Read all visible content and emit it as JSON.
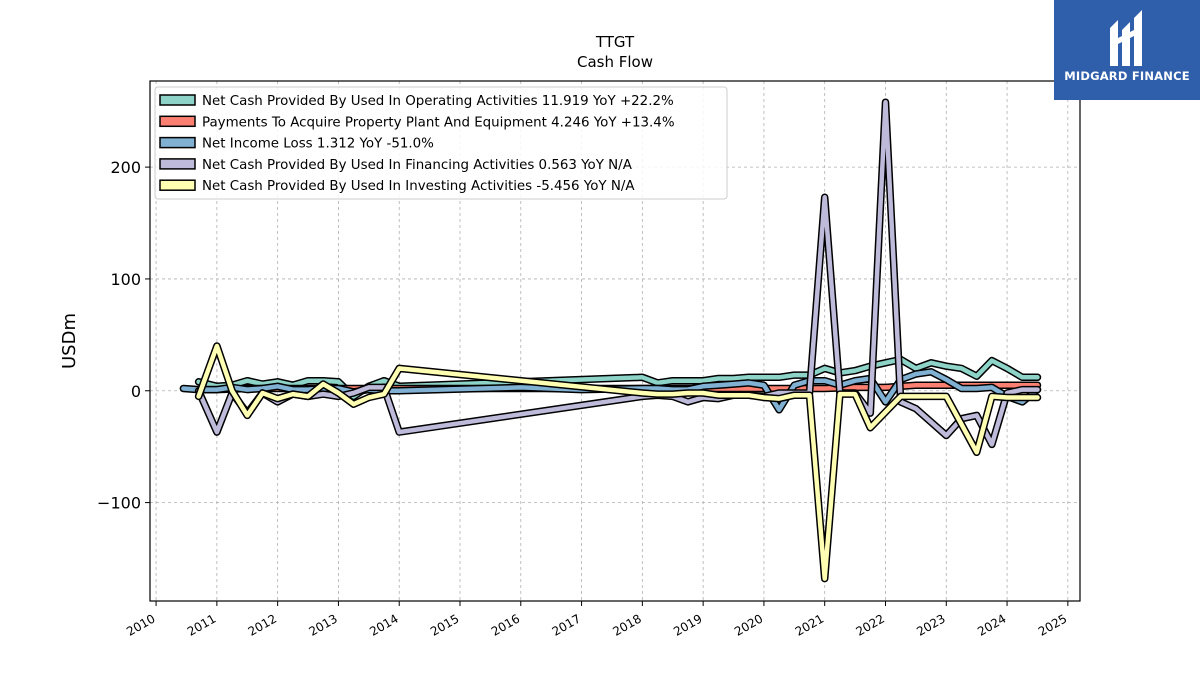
{
  "chart_data": {
    "type": "line",
    "title": "TTGT",
    "subtitle": "Cash Flow",
    "ylabel": "USDm",
    "xlabel": "",
    "xlim": [
      2009.9,
      2025.2
    ],
    "ylim": [
      -188,
      277
    ],
    "yticks": [
      -100,
      0,
      100,
      200
    ],
    "ytick_labels": [
      "−100",
      "0",
      "100",
      "200"
    ],
    "xticks": [
      2010,
      2011,
      2012,
      2013,
      2014,
      2015,
      2016,
      2017,
      2018,
      2019,
      2020,
      2021,
      2022,
      2023,
      2024,
      2025
    ],
    "xtick_labels": [
      "2010",
      "2011",
      "2012",
      "2013",
      "2014",
      "2015",
      "2016",
      "2017",
      "2018",
      "2019",
      "2020",
      "2021",
      "2022",
      "2023",
      "2024",
      "2025"
    ],
    "grid": true,
    "legend_position": "top-left",
    "series": [
      {
        "name": "Net Cash Provided By Used In Operating Activities  11.919 YoY +22.2%",
        "color": "#8dd3c7",
        "points": [
          [
            2010.7,
            8
          ],
          [
            2011.0,
            4
          ],
          [
            2011.25,
            5
          ],
          [
            2011.5,
            9
          ],
          [
            2011.75,
            6
          ],
          [
            2012.0,
            8
          ],
          [
            2012.25,
            5
          ],
          [
            2012.5,
            9
          ],
          [
            2012.75,
            9
          ],
          [
            2013.0,
            8
          ],
          [
            2013.25,
            -5
          ],
          [
            2013.5,
            4
          ],
          [
            2013.75,
            9
          ],
          [
            2014.0,
            4
          ],
          [
            2018.0,
            12
          ],
          [
            2018.25,
            7
          ],
          [
            2018.5,
            9
          ],
          [
            2018.75,
            9
          ],
          [
            2019.0,
            9
          ],
          [
            2019.25,
            11
          ],
          [
            2019.5,
            11
          ],
          [
            2019.75,
            12
          ],
          [
            2020.0,
            12
          ],
          [
            2020.25,
            12
          ],
          [
            2020.5,
            14
          ],
          [
            2020.75,
            14
          ],
          [
            2021.0,
            20
          ],
          [
            2021.25,
            16
          ],
          [
            2021.5,
            18
          ],
          [
            2021.75,
            22
          ],
          [
            2022.0,
            25
          ],
          [
            2022.25,
            28
          ],
          [
            2022.5,
            20
          ],
          [
            2022.75,
            25
          ],
          [
            2023.0,
            22
          ],
          [
            2023.25,
            20
          ],
          [
            2023.5,
            13
          ],
          [
            2023.75,
            27
          ],
          [
            2024.0,
            20
          ],
          [
            2024.25,
            12
          ],
          [
            2024.5,
            12
          ]
        ]
      },
      {
        "name": "Payments To Acquire Property Plant And Equipment  4.246 YoY +13.4%",
        "color": "#fb8072",
        "points": [
          [
            2010.7,
            1
          ],
          [
            2011.0,
            1
          ],
          [
            2011.5,
            2
          ],
          [
            2012.0,
            2
          ],
          [
            2012.5,
            2
          ],
          [
            2013.0,
            2
          ],
          [
            2013.5,
            2
          ],
          [
            2014.0,
            2
          ],
          [
            2018.0,
            2
          ],
          [
            2019.0,
            2
          ],
          [
            2020.0,
            2
          ],
          [
            2021.0,
            2
          ],
          [
            2021.5,
            3
          ],
          [
            2022.0,
            3
          ],
          [
            2022.5,
            5
          ],
          [
            2023.0,
            5
          ],
          [
            2023.5,
            5
          ],
          [
            2024.0,
            5
          ],
          [
            2024.5,
            5
          ]
        ]
      },
      {
        "name": "Net Income Loss  1.312 YoY -51.0%",
        "color": "#80b1d3",
        "points": [
          [
            2010.45,
            2
          ],
          [
            2010.7,
            1
          ],
          [
            2011.0,
            1
          ],
          [
            2011.25,
            3
          ],
          [
            2011.5,
            1
          ],
          [
            2011.75,
            2
          ],
          [
            2012.0,
            4
          ],
          [
            2012.25,
            1
          ],
          [
            2012.5,
            1
          ],
          [
            2012.75,
            2
          ],
          [
            2013.0,
            2
          ],
          [
            2013.25,
            -1
          ],
          [
            2013.5,
            1
          ],
          [
            2013.75,
            0
          ],
          [
            2014.0,
            0
          ],
          [
            2016.0,
            3
          ],
          [
            2017.0,
            1
          ],
          [
            2018.0,
            2
          ],
          [
            2018.25,
            2
          ],
          [
            2018.5,
            1
          ],
          [
            2018.75,
            1
          ],
          [
            2019.0,
            4
          ],
          [
            2019.25,
            5
          ],
          [
            2019.5,
            6
          ],
          [
            2019.75,
            7
          ],
          [
            2020.0,
            5
          ],
          [
            2020.25,
            -17
          ],
          [
            2020.5,
            5
          ],
          [
            2020.75,
            9
          ],
          [
            2021.0,
            9
          ],
          [
            2021.25,
            5
          ],
          [
            2021.5,
            9
          ],
          [
            2021.75,
            11
          ],
          [
            2022.0,
            -10
          ],
          [
            2022.25,
            10
          ],
          [
            2022.5,
            15
          ],
          [
            2022.75,
            17
          ],
          [
            2023.0,
            10
          ],
          [
            2023.25,
            2
          ],
          [
            2023.5,
            2
          ],
          [
            2023.75,
            3
          ],
          [
            2024.0,
            -5
          ],
          [
            2024.25,
            -10
          ],
          [
            2024.5,
            1
          ]
        ]
      },
      {
        "name": "Net Cash Provided By Used In Financing Activities  0.563 YoY N/A",
        "color": "#bebada",
        "points": [
          [
            2010.7,
            0
          ],
          [
            2011.0,
            -37
          ],
          [
            2011.25,
            -2
          ],
          [
            2011.5,
            -20
          ],
          [
            2011.75,
            -2
          ],
          [
            2012.0,
            -10
          ],
          [
            2012.25,
            -3
          ],
          [
            2012.5,
            -5
          ],
          [
            2012.75,
            -3
          ],
          [
            2013.0,
            -5
          ],
          [
            2013.25,
            -2
          ],
          [
            2013.5,
            3
          ],
          [
            2013.75,
            3
          ],
          [
            2014.0,
            -37
          ],
          [
            2018.0,
            -5
          ],
          [
            2018.25,
            -4
          ],
          [
            2018.5,
            -5
          ],
          [
            2018.75,
            -10
          ],
          [
            2019.0,
            -6
          ],
          [
            2019.25,
            -7
          ],
          [
            2019.5,
            -4
          ],
          [
            2019.75,
            -4
          ],
          [
            2020.0,
            -5
          ],
          [
            2020.25,
            -2
          ],
          [
            2020.5,
            -2
          ],
          [
            2020.75,
            -2
          ],
          [
            2021.0,
            173
          ],
          [
            2021.25,
            -2
          ],
          [
            2021.5,
            -2
          ],
          [
            2021.75,
            -20
          ],
          [
            2022.0,
            258
          ],
          [
            2022.25,
            -10
          ],
          [
            2022.5,
            -16
          ],
          [
            2022.75,
            -28
          ],
          [
            2023.0,
            -40
          ],
          [
            2023.25,
            -25
          ],
          [
            2023.5,
            -22
          ],
          [
            2023.75,
            -48
          ],
          [
            2024.0,
            -2
          ],
          [
            2024.25,
            1
          ],
          [
            2024.5,
            1
          ]
        ]
      },
      {
        "name": "Net Cash Provided By Used In Investing Activities  -5.456 YoY N/A",
        "color": "#ffffb3",
        "points": [
          [
            2010.7,
            -5
          ],
          [
            2011.0,
            40
          ],
          [
            2011.25,
            0
          ],
          [
            2011.5,
            -22
          ],
          [
            2011.75,
            -2
          ],
          [
            2012.0,
            -7
          ],
          [
            2012.25,
            -3
          ],
          [
            2012.5,
            -5
          ],
          [
            2012.75,
            6
          ],
          [
            2013.0,
            -2
          ],
          [
            2013.25,
            -12
          ],
          [
            2013.5,
            -6
          ],
          [
            2013.75,
            -3
          ],
          [
            2014.0,
            20
          ],
          [
            2018.0,
            -2
          ],
          [
            2018.25,
            -3
          ],
          [
            2018.5,
            -3
          ],
          [
            2018.75,
            -2
          ],
          [
            2019.0,
            -2
          ],
          [
            2019.25,
            -4
          ],
          [
            2019.5,
            -4
          ],
          [
            2019.75,
            -4
          ],
          [
            2020.0,
            -6
          ],
          [
            2020.25,
            -7
          ],
          [
            2020.5,
            -4
          ],
          [
            2020.75,
            -4
          ],
          [
            2021.0,
            -168
          ],
          [
            2021.25,
            -3
          ],
          [
            2021.5,
            -3
          ],
          [
            2021.75,
            -33
          ],
          [
            2022.0,
            -19
          ],
          [
            2022.25,
            -5
          ],
          [
            2022.5,
            -5
          ],
          [
            2022.75,
            -5
          ],
          [
            2023.0,
            -5
          ],
          [
            2023.25,
            -30
          ],
          [
            2023.5,
            -55
          ],
          [
            2023.75,
            -5
          ],
          [
            2024.0,
            -6
          ],
          [
            2024.25,
            -6
          ],
          [
            2024.5,
            -6
          ]
        ]
      }
    ]
  },
  "brand": {
    "name": "MIDGARD FINANCE",
    "background": "#2f5eab",
    "icon": "midgard-logo-icon"
  }
}
